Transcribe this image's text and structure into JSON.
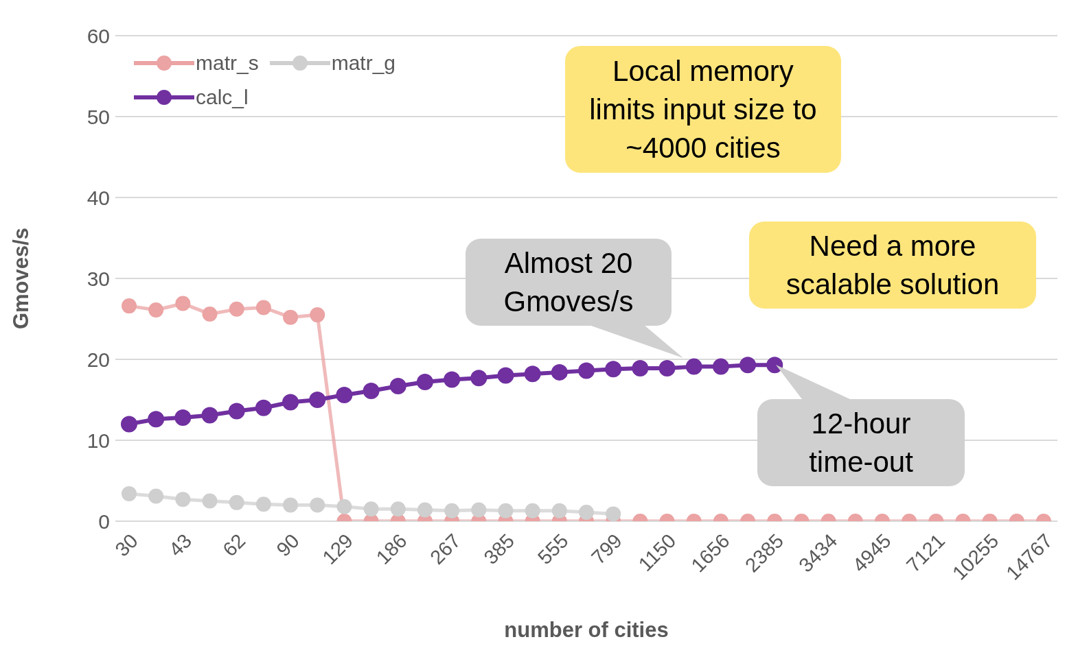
{
  "chart_data": {
    "type": "line",
    "xlabel": "number of cities",
    "ylabel": "Gmoves/s",
    "categories": [
      "30",
      null,
      "43",
      null,
      "62",
      null,
      "90",
      null,
      "129",
      null,
      "186",
      null,
      "267",
      null,
      "385",
      null,
      "555",
      null,
      "799",
      null,
      "1150",
      null,
      "1656",
      null,
      "2385",
      null,
      "3434",
      null,
      "4945",
      null,
      "7121",
      null,
      "10255",
      null,
      "14767"
    ],
    "series": [
      {
        "name": "matr_s",
        "color": "#eba3a3",
        "values": [
          26.6,
          26.1,
          26.9,
          25.6,
          26.2,
          26.4,
          25.2,
          25.5,
          0,
          0,
          0,
          0,
          0,
          0,
          0,
          0,
          0,
          0,
          0,
          0,
          0,
          0,
          0,
          0,
          0,
          0,
          0,
          0,
          0,
          0,
          0,
          0,
          0,
          0,
          0
        ]
      },
      {
        "name": "matr_g",
        "color": "#cfcfcf",
        "values": [
          3.4,
          3.1,
          2.7,
          2.5,
          2.3,
          2.1,
          2.0,
          2.0,
          1.8,
          1.5,
          1.5,
          1.4,
          1.3,
          1.4,
          1.3,
          1.3,
          1.3,
          1.1,
          0.9,
          null,
          null,
          null,
          null,
          null,
          null,
          null,
          null,
          null,
          null,
          null,
          null,
          null,
          null,
          null,
          null
        ]
      },
      {
        "name": "calc_l",
        "color": "#7030a0",
        "values": [
          12.0,
          12.6,
          12.8,
          13.1,
          13.6,
          14.0,
          14.7,
          15.0,
          15.6,
          16.1,
          16.7,
          17.2,
          17.5,
          17.7,
          18.0,
          18.2,
          18.4,
          18.6,
          18.8,
          18.9,
          18.9,
          19.1,
          19.1,
          19.3,
          19.3,
          null,
          null,
          null,
          null,
          null,
          null,
          null,
          null,
          null,
          null
        ]
      }
    ],
    "ylim": [
      0,
      60
    ],
    "yticks": [
      0,
      10,
      20,
      30,
      40,
      50,
      60
    ],
    "grid": "y",
    "legend": "top left",
    "marker": "circle",
    "line_style": "solid",
    "annotations": [
      "Local memory limits input size to ~4000 cities",
      "Need a more scalable solution",
      "Almost 20 Gmoves/s",
      "12-hour time-out"
    ]
  }
}
